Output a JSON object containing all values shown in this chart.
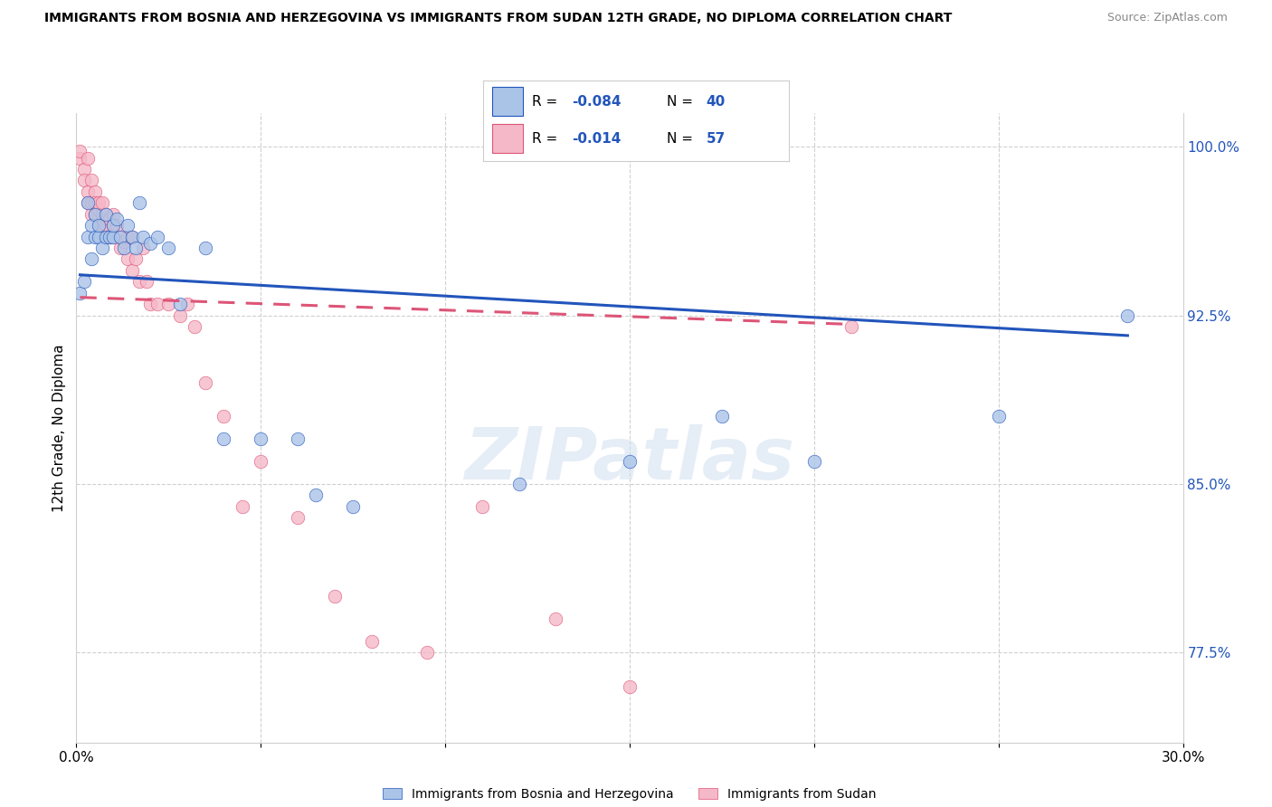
{
  "title": "IMMIGRANTS FROM BOSNIA AND HERZEGOVINA VS IMMIGRANTS FROM SUDAN 12TH GRADE, NO DIPLOMA CORRELATION CHART",
  "source": "Source: ZipAtlas.com",
  "ylabel": "12th Grade, No Diploma",
  "yticks": [
    0.775,
    0.85,
    0.925,
    1.0
  ],
  "ytick_labels": [
    "77.5%",
    "85.0%",
    "92.5%",
    "100.0%"
  ],
  "xlim": [
    0.0,
    0.3
  ],
  "ylim": [
    0.735,
    1.015
  ],
  "blue_color": "#aac4e8",
  "pink_color": "#f5b8c8",
  "blue_line_color": "#2255bb",
  "pink_line_color": "#dd5577",
  "watermark_text": "ZIPatlas",
  "blue_scatter_x": [
    0.001,
    0.002,
    0.003,
    0.003,
    0.004,
    0.004,
    0.005,
    0.005,
    0.006,
    0.006,
    0.007,
    0.008,
    0.008,
    0.009,
    0.01,
    0.01,
    0.011,
    0.012,
    0.013,
    0.014,
    0.015,
    0.016,
    0.017,
    0.018,
    0.02,
    0.022,
    0.025,
    0.028,
    0.035,
    0.04,
    0.05,
    0.06,
    0.065,
    0.075,
    0.12,
    0.15,
    0.175,
    0.2,
    0.25,
    0.285
  ],
  "blue_scatter_y": [
    0.935,
    0.94,
    0.96,
    0.975,
    0.95,
    0.965,
    0.96,
    0.97,
    0.96,
    0.965,
    0.955,
    0.96,
    0.97,
    0.96,
    0.96,
    0.965,
    0.968,
    0.96,
    0.955,
    0.965,
    0.96,
    0.955,
    0.975,
    0.96,
    0.957,
    0.96,
    0.955,
    0.93,
    0.955,
    0.87,
    0.87,
    0.87,
    0.845,
    0.84,
    0.85,
    0.86,
    0.88,
    0.86,
    0.88,
    0.925
  ],
  "pink_scatter_x": [
    0.001,
    0.001,
    0.002,
    0.002,
    0.003,
    0.003,
    0.003,
    0.004,
    0.004,
    0.004,
    0.005,
    0.005,
    0.005,
    0.006,
    0.006,
    0.006,
    0.007,
    0.007,
    0.007,
    0.008,
    0.008,
    0.008,
    0.009,
    0.009,
    0.01,
    0.01,
    0.01,
    0.011,
    0.012,
    0.012,
    0.013,
    0.014,
    0.014,
    0.015,
    0.015,
    0.016,
    0.017,
    0.018,
    0.019,
    0.02,
    0.022,
    0.025,
    0.028,
    0.03,
    0.032,
    0.035,
    0.04,
    0.045,
    0.05,
    0.06,
    0.07,
    0.08,
    0.095,
    0.11,
    0.13,
    0.15,
    0.21
  ],
  "pink_scatter_y": [
    0.995,
    0.998,
    0.99,
    0.985,
    0.995,
    0.98,
    0.975,
    0.975,
    0.985,
    0.97,
    0.98,
    0.975,
    0.97,
    0.972,
    0.965,
    0.975,
    0.97,
    0.965,
    0.975,
    0.965,
    0.97,
    0.96,
    0.968,
    0.96,
    0.965,
    0.97,
    0.96,
    0.965,
    0.96,
    0.955,
    0.958,
    0.96,
    0.95,
    0.96,
    0.945,
    0.95,
    0.94,
    0.955,
    0.94,
    0.93,
    0.93,
    0.93,
    0.925,
    0.93,
    0.92,
    0.895,
    0.88,
    0.84,
    0.86,
    0.835,
    0.8,
    0.78,
    0.775,
    0.84,
    0.79,
    0.76,
    0.92
  ],
  "blue_trend_x": [
    0.001,
    0.285
  ],
  "blue_trend_y": [
    0.943,
    0.916
  ],
  "pink_trend_x": [
    0.001,
    0.21
  ],
  "pink_trend_y": [
    0.933,
    0.921
  ]
}
